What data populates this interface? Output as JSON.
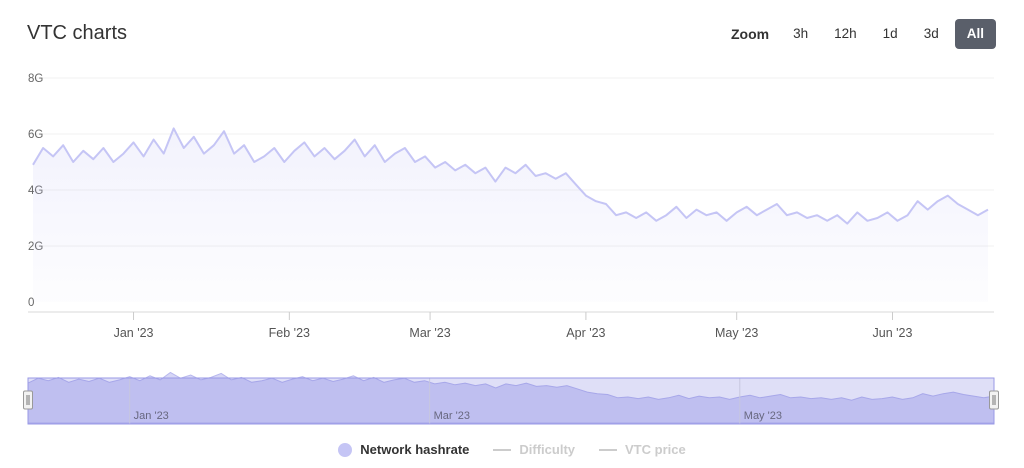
{
  "title": "VTC charts",
  "zoom": {
    "label": "Zoom",
    "buttons": [
      "3h",
      "12h",
      "1d",
      "3d",
      "All"
    ],
    "active": "All"
  },
  "chart_data": {
    "type": "area",
    "y_ticks": [
      0,
      2,
      4,
      6,
      8
    ],
    "y_tick_labels": [
      "0",
      "2G",
      "4G",
      "6G",
      "8G"
    ],
    "ylim": [
      0,
      8
    ],
    "x_start": "2022-12-12",
    "x_end": "2023-06-20",
    "x_ticks": [
      {
        "date": "2023-01-01",
        "label": "Jan '23"
      },
      {
        "date": "2023-02-01",
        "label": "Feb '23"
      },
      {
        "date": "2023-03-01",
        "label": "Mar '23"
      },
      {
        "date": "2023-04-01",
        "label": "Apr '23"
      },
      {
        "date": "2023-05-01",
        "label": "May '23"
      },
      {
        "date": "2023-06-01",
        "label": "Jun '23"
      }
    ],
    "navigator_ticks": [
      {
        "date": "2023-01-01",
        "label": "Jan '23"
      },
      {
        "date": "2023-03-01",
        "label": "Mar '23"
      },
      {
        "date": "2023-05-01",
        "label": "May '23"
      }
    ],
    "series": [
      {
        "name": "Network hashrate",
        "color": "#c5c5f5",
        "points": [
          [
            "2022-12-12",
            4.9
          ],
          [
            "2022-12-14",
            5.5
          ],
          [
            "2022-12-16",
            5.2
          ],
          [
            "2022-12-18",
            5.6
          ],
          [
            "2022-12-20",
            5.0
          ],
          [
            "2022-12-22",
            5.4
          ],
          [
            "2022-12-24",
            5.1
          ],
          [
            "2022-12-26",
            5.5
          ],
          [
            "2022-12-28",
            5.0
          ],
          [
            "2022-12-30",
            5.3
          ],
          [
            "2023-01-01",
            5.7
          ],
          [
            "2023-01-03",
            5.2
          ],
          [
            "2023-01-05",
            5.8
          ],
          [
            "2023-01-07",
            5.3
          ],
          [
            "2023-01-09",
            6.2
          ],
          [
            "2023-01-11",
            5.5
          ],
          [
            "2023-01-13",
            5.9
          ],
          [
            "2023-01-15",
            5.3
          ],
          [
            "2023-01-17",
            5.6
          ],
          [
            "2023-01-19",
            6.1
          ],
          [
            "2023-01-21",
            5.3
          ],
          [
            "2023-01-23",
            5.6
          ],
          [
            "2023-01-25",
            5.0
          ],
          [
            "2023-01-27",
            5.2
          ],
          [
            "2023-01-29",
            5.5
          ],
          [
            "2023-01-31",
            5.0
          ],
          [
            "2023-02-02",
            5.4
          ],
          [
            "2023-02-04",
            5.7
          ],
          [
            "2023-02-06",
            5.2
          ],
          [
            "2023-02-08",
            5.5
          ],
          [
            "2023-02-10",
            5.1
          ],
          [
            "2023-02-12",
            5.4
          ],
          [
            "2023-02-14",
            5.8
          ],
          [
            "2023-02-16",
            5.2
          ],
          [
            "2023-02-18",
            5.6
          ],
          [
            "2023-02-20",
            5.0
          ],
          [
            "2023-02-22",
            5.3
          ],
          [
            "2023-02-24",
            5.5
          ],
          [
            "2023-02-26",
            5.0
          ],
          [
            "2023-02-28",
            5.2
          ],
          [
            "2023-03-02",
            4.8
          ],
          [
            "2023-03-04",
            5.0
          ],
          [
            "2023-03-06",
            4.7
          ],
          [
            "2023-03-08",
            4.9
          ],
          [
            "2023-03-10",
            4.6
          ],
          [
            "2023-03-12",
            4.8
          ],
          [
            "2023-03-14",
            4.3
          ],
          [
            "2023-03-16",
            4.8
          ],
          [
            "2023-03-18",
            4.6
          ],
          [
            "2023-03-20",
            4.9
          ],
          [
            "2023-03-22",
            4.5
          ],
          [
            "2023-03-24",
            4.6
          ],
          [
            "2023-03-26",
            4.4
          ],
          [
            "2023-03-28",
            4.6
          ],
          [
            "2023-03-30",
            4.2
          ],
          [
            "2023-04-01",
            3.8
          ],
          [
            "2023-04-03",
            3.6
          ],
          [
            "2023-04-05",
            3.5
          ],
          [
            "2023-04-07",
            3.1
          ],
          [
            "2023-04-09",
            3.2
          ],
          [
            "2023-04-11",
            3.0
          ],
          [
            "2023-04-13",
            3.2
          ],
          [
            "2023-04-15",
            2.9
          ],
          [
            "2023-04-17",
            3.1
          ],
          [
            "2023-04-19",
            3.4
          ],
          [
            "2023-04-21",
            3.0
          ],
          [
            "2023-04-23",
            3.3
          ],
          [
            "2023-04-25",
            3.1
          ],
          [
            "2023-04-27",
            3.2
          ],
          [
            "2023-04-29",
            2.9
          ],
          [
            "2023-05-01",
            3.2
          ],
          [
            "2023-05-03",
            3.4
          ],
          [
            "2023-05-05",
            3.1
          ],
          [
            "2023-05-07",
            3.3
          ],
          [
            "2023-05-09",
            3.5
          ],
          [
            "2023-05-11",
            3.1
          ],
          [
            "2023-05-13",
            3.2
          ],
          [
            "2023-05-15",
            3.0
          ],
          [
            "2023-05-17",
            3.1
          ],
          [
            "2023-05-19",
            2.9
          ],
          [
            "2023-05-21",
            3.1
          ],
          [
            "2023-05-23",
            2.8
          ],
          [
            "2023-05-25",
            3.2
          ],
          [
            "2023-05-27",
            2.9
          ],
          [
            "2023-05-29",
            3.0
          ],
          [
            "2023-05-31",
            3.2
          ],
          [
            "2023-06-02",
            2.9
          ],
          [
            "2023-06-04",
            3.1
          ],
          [
            "2023-06-06",
            3.6
          ],
          [
            "2023-06-08",
            3.3
          ],
          [
            "2023-06-10",
            3.6
          ],
          [
            "2023-06-12",
            3.8
          ],
          [
            "2023-06-14",
            3.5
          ],
          [
            "2023-06-16",
            3.3
          ],
          [
            "2023-06-18",
            3.1
          ],
          [
            "2023-06-20",
            3.3
          ]
        ]
      },
      {
        "name": "Difficulty",
        "color": "#cccccc",
        "points": []
      },
      {
        "name": "VTC price",
        "color": "#cccccc",
        "points": []
      }
    ],
    "legend_placement": "bottom-center"
  }
}
